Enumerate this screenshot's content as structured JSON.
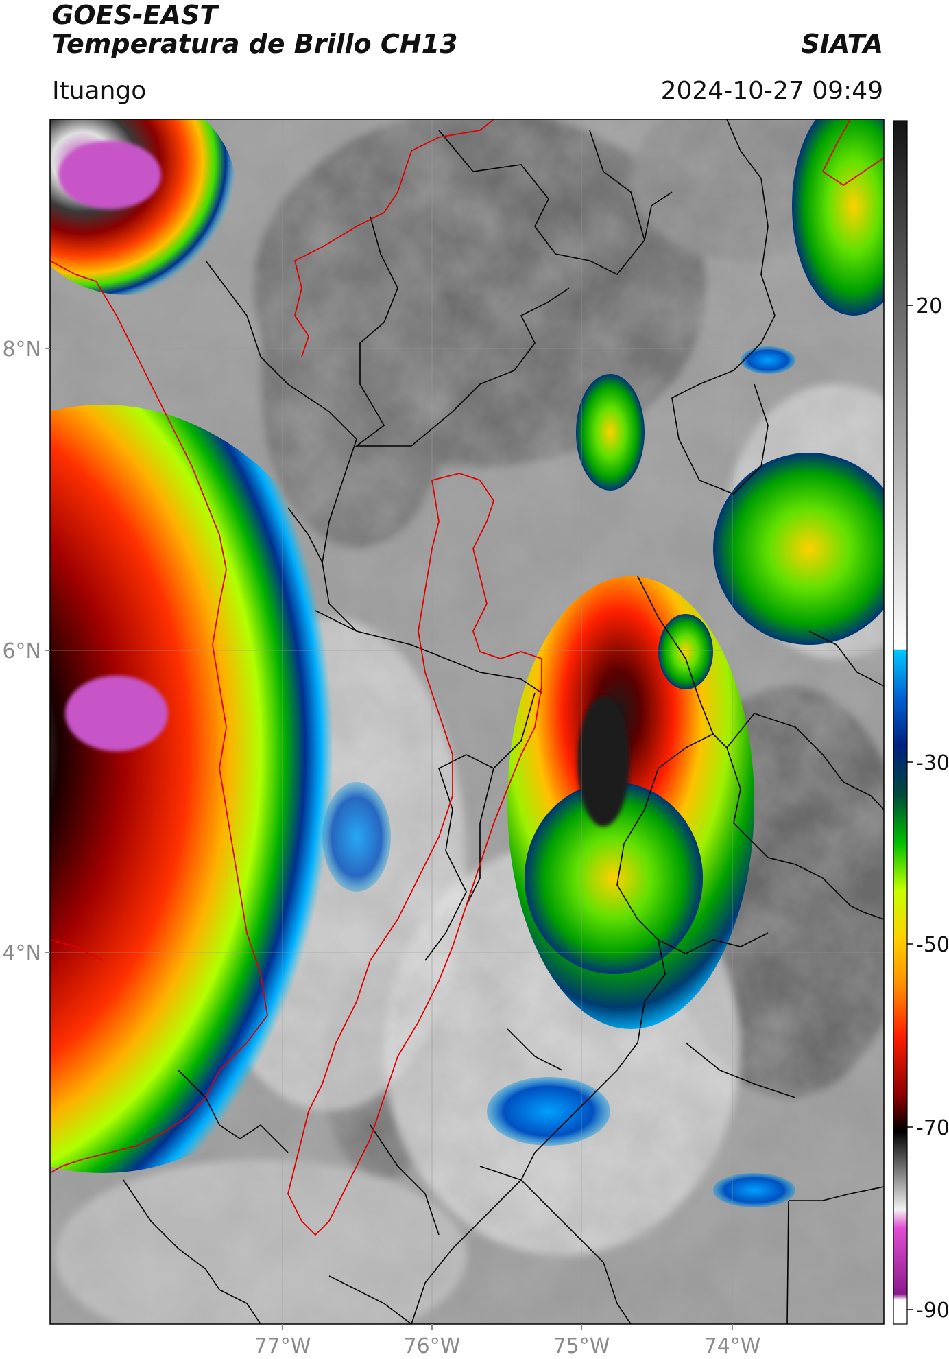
{
  "header": {
    "satellite": "GOES-EAST",
    "product": "Temperatura de Brillo CH13",
    "brand": "SIATA",
    "location": "Ituango",
    "datetime": "2024-10-27 09:49"
  },
  "map": {
    "lat_labels": [
      "8°N",
      "6°N",
      "4°N"
    ],
    "lon_labels": [
      "77°W",
      "76°W",
      "75°W",
      "74°W"
    ],
    "extent": {
      "lon": [
        -78.55,
        -72.8
      ],
      "lat": [
        1.95,
        9.55
      ]
    }
  },
  "colorbar": {
    "tick_labels": [
      "20",
      "-30",
      "-50",
      "-70",
      "-90"
    ],
    "range": [
      -90,
      35
    ],
    "colors": [
      "#ffffff",
      "#8b1a8b",
      "#e24fd2",
      "#f0f0f0",
      "#3c3c3c",
      "#000000",
      "#8b0000",
      "#ff2000",
      "#ff8c00",
      "#ffd000",
      "#c8ff00",
      "#00c000",
      "#004a3a",
      "#002080",
      "#0060d0",
      "#00c8ff",
      "#ffffff",
      "#141414"
    ]
  }
}
